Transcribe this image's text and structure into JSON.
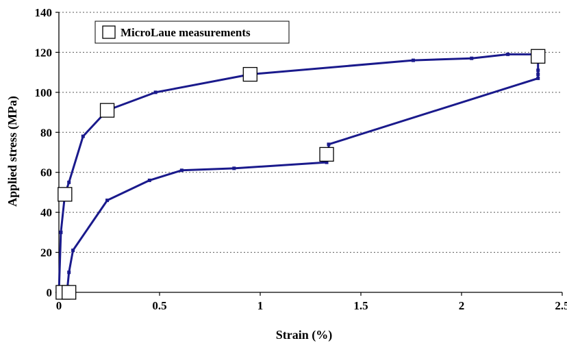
{
  "chart_data": {
    "type": "line",
    "xlabel": "Strain (%)",
    "ylabel": "Applied stress (MPa)",
    "xlim": [
      0,
      2.5
    ],
    "ylim": [
      0,
      140
    ],
    "xticks": [
      0,
      0.5,
      1,
      1.5,
      2,
      2.5
    ],
    "yticks": [
      0,
      20,
      40,
      60,
      80,
      100,
      120,
      140
    ],
    "grid": "horizontal dotted",
    "legend_position": "top-left",
    "line_color": "#1a1a8c",
    "series": [
      {
        "x": [
          0.0,
          0.01,
          0.03,
          0.05,
          0.12,
          0.24,
          0.48,
          0.95,
          1.76,
          2.05,
          2.23,
          2.38
        ],
        "y": [
          0,
          30,
          49,
          55,
          78,
          91,
          100,
          109,
          116,
          117,
          119,
          119
        ]
      },
      {
        "x": [
          2.38,
          2.38,
          2.38,
          2.38,
          1.34,
          1.34,
          1.33,
          0.87,
          0.61,
          0.45,
          0.24,
          0.07,
          0.05,
          0.04
        ],
        "y": [
          119,
          111,
          109,
          107,
          74,
          69,
          65,
          62,
          61,
          56,
          46,
          21,
          10,
          0
        ]
      },
      {
        "name": "MicroLaue measurements",
        "marker": "open-square",
        "x": [
          0.02,
          0.05,
          0.03,
          0.24,
          0.95,
          2.38,
          1.33
        ],
        "y": [
          0,
          0,
          49,
          91,
          109,
          118,
          69
        ]
      }
    ]
  }
}
